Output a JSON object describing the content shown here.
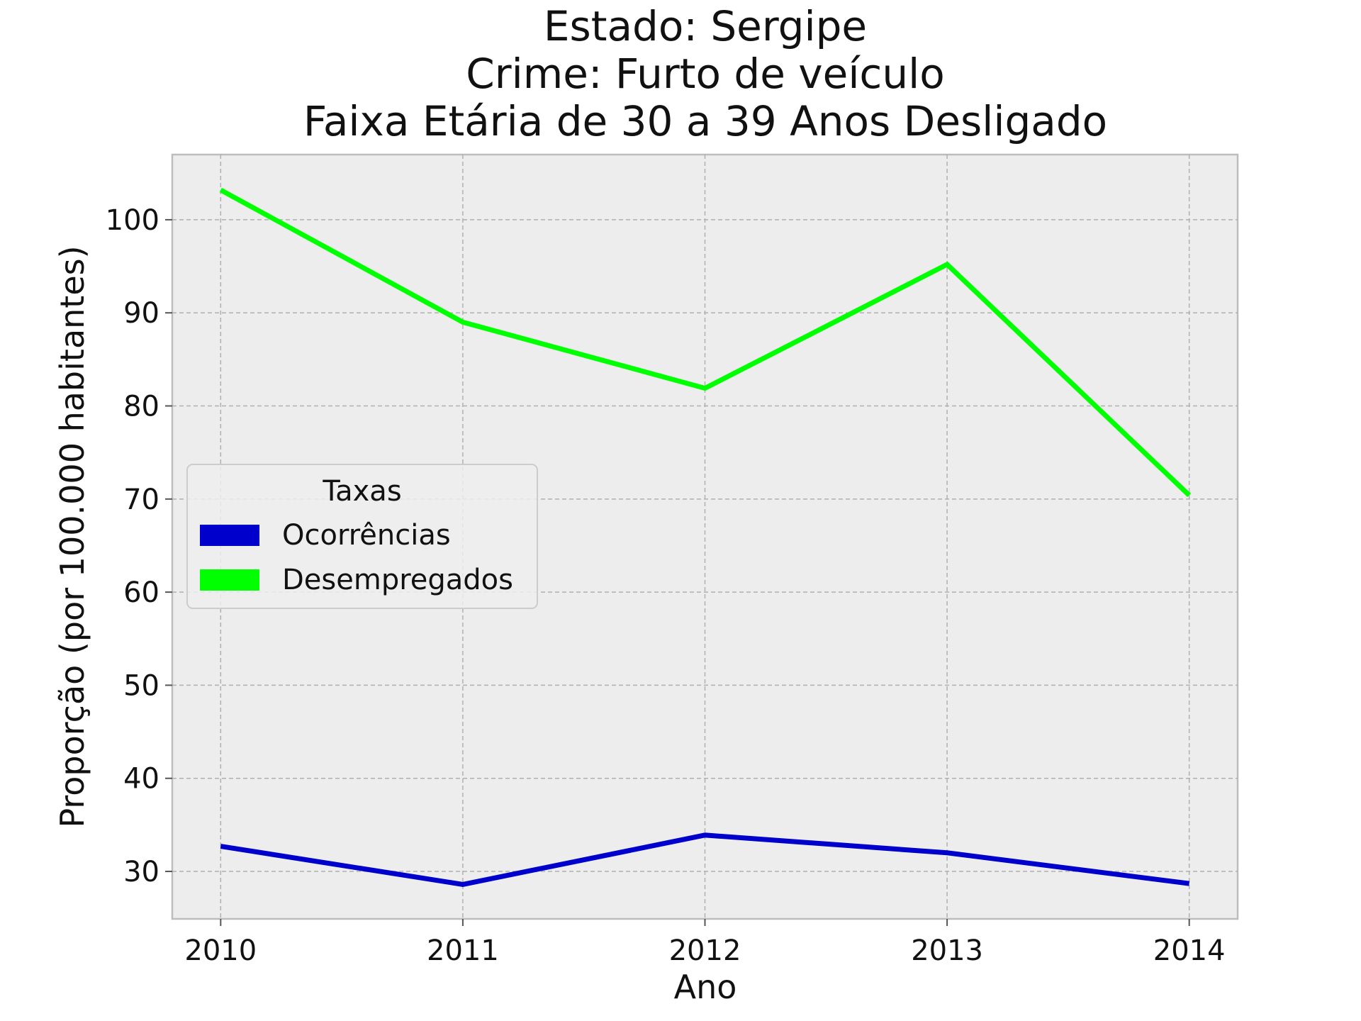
{
  "chart_data": {
    "type": "line",
    "title_lines": [
      "Estado: Sergipe",
      "Crime: Furto de veículo",
      "Faixa Etária de 30 a 39 Anos   Desligado"
    ],
    "xlabel": "Ano",
    "ylabel": "Proporção (por 100.000 habitantes)",
    "x": [
      2010,
      2011,
      2012,
      2013,
      2014
    ],
    "x_tick_labels": [
      "2010",
      "2011",
      "2012",
      "2013",
      "2014"
    ],
    "y_ticks": [
      30,
      40,
      50,
      60,
      70,
      80,
      90,
      100
    ],
    "y_tick_labels": [
      "30",
      "40",
      "50",
      "60",
      "70",
      "80",
      "90",
      "100"
    ],
    "xlim": [
      2009.8,
      2014.2
    ],
    "ylim": [
      24.9,
      107.0
    ],
    "grid": true,
    "legend": {
      "title": "Taxas",
      "placement": "center-left"
    },
    "series": [
      {
        "name": "Ocorrências",
        "color": "#0000cc",
        "values": [
          32.7,
          28.6,
          33.9,
          32.0,
          28.7
        ]
      },
      {
        "name": "Desempregados",
        "color": "#00ff00",
        "values": [
          103.2,
          89.0,
          81.9,
          95.2,
          70.4
        ]
      }
    ],
    "colors": {
      "plot_background": "#ededed",
      "frame": "#bdbdbd",
      "grid": "#b0b0b0"
    }
  }
}
